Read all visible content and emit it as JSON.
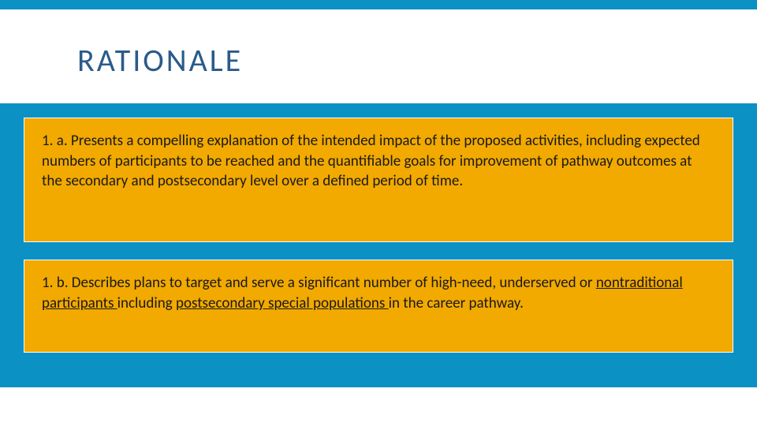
{
  "styling": {
    "accent_color": "#0c91c5",
    "title_color": "#2b5b8a",
    "box_background": "#f2a900",
    "box_border": "#ffffff",
    "text_color": "#1a1a1a",
    "title_fontsize": 40,
    "body_fontsize": 19,
    "title_letter_spacing": 3
  },
  "title": "RATIONALE",
  "boxes": {
    "item1": {
      "prefix": "1. a. ",
      "text": "Presents a compelling explanation of the intended impact of the proposed activities, including expected numbers of participants to be reached and the quantifiable goals for improvement of pathway outcomes at the secondary and postsecondary level over a defined period of time."
    },
    "item2": {
      "prefix": "1. b. ",
      "text_part1": "Describes plans to target and serve a significant number of high-need, underserved or ",
      "underlined1": "nontraditional participants ",
      "text_part2": "including ",
      "underlined2": "postsecondary special populations ",
      "text_part3": "in the career pathway."
    }
  }
}
